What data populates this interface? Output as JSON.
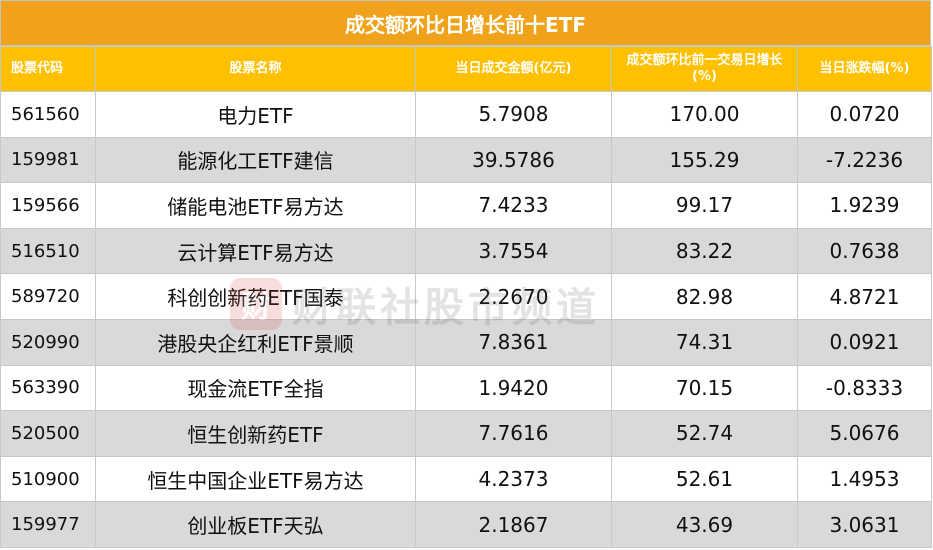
{
  "title": "成交额环比日增长前十ETF",
  "watermark": {
    "logo_char": "财",
    "text": "财联社股市频道"
  },
  "headers": [
    "股票代码",
    "股票名称",
    "当日成交金额(亿元)",
    "成交额环比前一交易日增长(%)",
    "当日涨跌幅(%)"
  ],
  "rows": [
    {
      "code": "561560",
      "name": "电力ETF",
      "amount": "5.7908",
      "growth": "170.00",
      "change": "0.0720"
    },
    {
      "code": "159981",
      "name": "能源化工ETF建信",
      "amount": "39.5786",
      "growth": "155.29",
      "change": "-7.2236"
    },
    {
      "code": "159566",
      "name": "储能电池ETF易方达",
      "amount": "7.4233",
      "growth": "99.17",
      "change": "1.9239"
    },
    {
      "code": "516510",
      "name": "云计算ETF易方达",
      "amount": "3.7554",
      "growth": "83.22",
      "change": "0.7638"
    },
    {
      "code": "589720",
      "name": "科创创新药ETF国泰",
      "amount": "2.2670",
      "growth": "82.98",
      "change": "4.8721"
    },
    {
      "code": "520990",
      "name": "港股央企红利ETF景顺",
      "amount": "7.8361",
      "growth": "74.31",
      "change": "0.0921"
    },
    {
      "code": "563390",
      "name": "现金流ETF全指",
      "amount": "1.9420",
      "growth": "70.15",
      "change": "-0.8333"
    },
    {
      "code": "520500",
      "name": "恒生创新药ETF",
      "amount": "7.7616",
      "growth": "52.74",
      "change": "5.0676"
    },
    {
      "code": "510900",
      "name": "恒生中国企业ETF易方达",
      "amount": "4.2373",
      "growth": "52.61",
      "change": "1.4953"
    },
    {
      "code": "159977",
      "name": "创业板ETF天弘",
      "amount": "2.1867",
      "growth": "43.69",
      "change": "3.0631"
    }
  ]
}
